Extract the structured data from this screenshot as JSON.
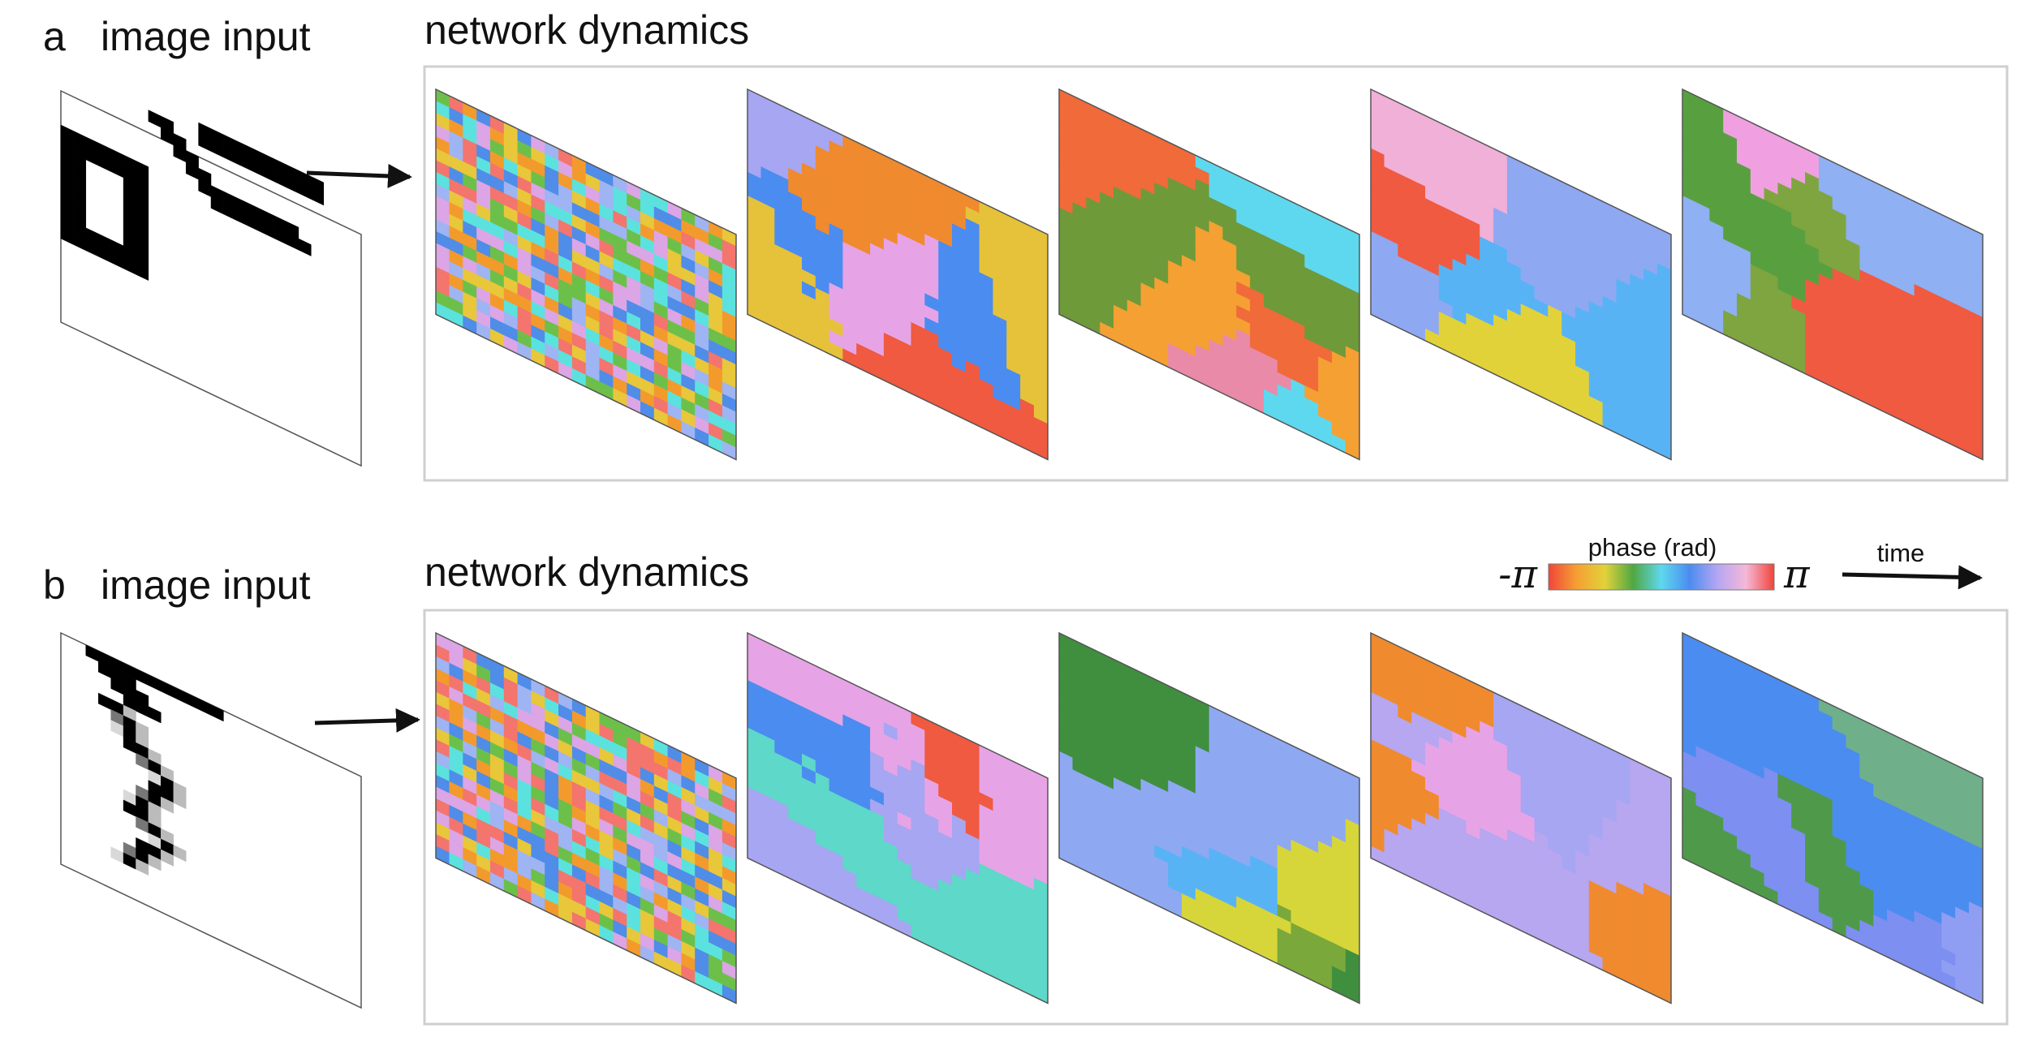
{
  "panels": [
    {
      "letter": "a",
      "input_label": "image input",
      "dynamics_label": "network dynamics",
      "input_shape": "square-and-triangle",
      "frame_palettes": [
        [
          "#f3756d",
          "#6cc04a",
          "#4f8de8",
          "#e8c73a",
          "#dba5e6",
          "#5be2de",
          "#f39a2d",
          "#9fb4f2"
        ],
        [
          "#f08a2e",
          "#5ed2e8",
          "#3f9b3f",
          "#4b8cf0",
          "#e5c23a",
          "#e6a4e6",
          "#f05a40",
          "#a6a6f2"
        ],
        [
          "#f06a3a",
          "#f5a033",
          "#5ed8ee",
          "#e98aa8",
          "#48b0f5",
          "#6e9a3a"
        ],
        [
          "#58b3f5",
          "#8fa8f2",
          "#3f8f3f",
          "#f0b0d8",
          "#e2d23a",
          "#f05a40"
        ],
        [
          "#58a03f",
          "#7fa540",
          "#a6a6f2",
          "#8fb0f2",
          "#f05a40",
          "#f0a0e0"
        ]
      ]
    },
    {
      "letter": "b",
      "input_label": "image input",
      "dynamics_label": "network dynamics",
      "input_shape": "triangle-and-zigzag",
      "frame_palettes": [
        [
          "#f3756d",
          "#6cc04a",
          "#4f8de8",
          "#e8c73a",
          "#dba5e6",
          "#5be2de",
          "#f39a2d",
          "#9fb4f2"
        ],
        [
          "#f05a40",
          "#5ed8c8",
          "#4b8cf0",
          "#3f9b3f",
          "#e6a4e6",
          "#e5c23a",
          "#6a9aee",
          "#a6a6f2"
        ],
        [
          "#f0a83a",
          "#7aa83a",
          "#8fa8f2",
          "#58b3f5",
          "#3f8f3f",
          "#d6d63a"
        ],
        [
          "#a6a6f2",
          "#b7a6f0",
          "#d6d23a",
          "#f08a2e",
          "#e6a4e6"
        ],
        [
          "#4f9a4a",
          "#6fb08a",
          "#8f9ef2",
          "#7d8ff0",
          "#4b8cf0"
        ]
      ]
    }
  ],
  "legend": {
    "title": "phase (rad)",
    "min_label": "-π",
    "max_label": "π",
    "range": [
      -3.1416,
      3.1416
    ],
    "colors": [
      "#f0453a",
      "#f5a033",
      "#e2d23a",
      "#4fa843",
      "#5ed8ee",
      "#4b8cf0",
      "#b6a6f2",
      "#f5b8d8",
      "#f0453a"
    ]
  },
  "time_label": "time",
  "colors": {
    "frame_border": "#cfcfcf",
    "arrow": "#111111",
    "text": "#111111"
  }
}
